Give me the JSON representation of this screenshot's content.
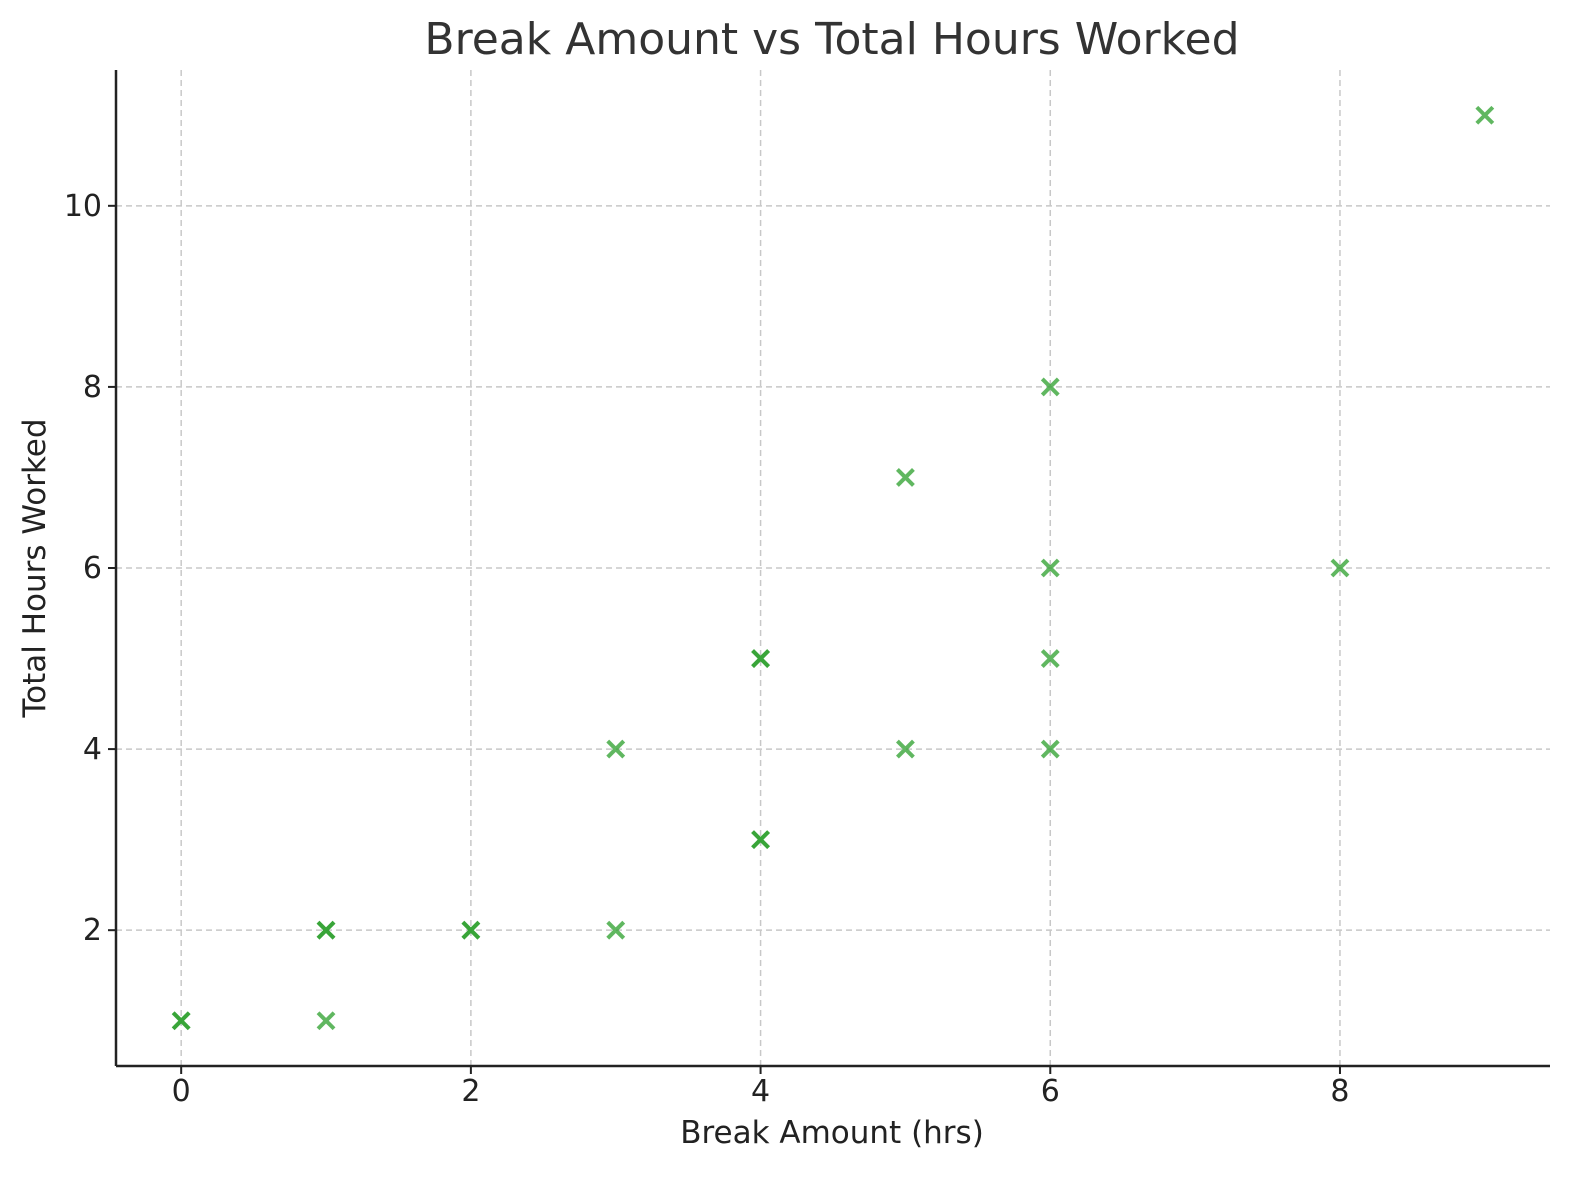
{
  "chart_data": {
    "type": "scatter",
    "title": "Break Amount vs Total Hours Worked",
    "xlabel": "Break Amount (hrs)",
    "ylabel": "Total Hours Worked",
    "xlim": [
      -0.45,
      9.45
    ],
    "ylim": [
      0.5,
      11.5
    ],
    "xticks": [
      0,
      2,
      4,
      6,
      8
    ],
    "yticks": [
      2,
      4,
      6,
      8,
      10
    ],
    "grid": true,
    "marker": "x",
    "color": "#2ca02c",
    "alpha": 0.75,
    "points": [
      {
        "x": 0,
        "y": 1
      },
      {
        "x": 0,
        "y": 1
      },
      {
        "x": 1,
        "y": 1
      },
      {
        "x": 1,
        "y": 2
      },
      {
        "x": 1,
        "y": 2
      },
      {
        "x": 2,
        "y": 2
      },
      {
        "x": 2,
        "y": 2
      },
      {
        "x": 3,
        "y": 2
      },
      {
        "x": 3,
        "y": 4
      },
      {
        "x": 4,
        "y": 3
      },
      {
        "x": 4,
        "y": 3
      },
      {
        "x": 4,
        "y": 5
      },
      {
        "x": 4,
        "y": 5
      },
      {
        "x": 5,
        "y": 4
      },
      {
        "x": 5,
        "y": 7
      },
      {
        "x": 6,
        "y": 4
      },
      {
        "x": 6,
        "y": 5
      },
      {
        "x": 6,
        "y": 6
      },
      {
        "x": 6,
        "y": 8
      },
      {
        "x": 8,
        "y": 6
      },
      {
        "x": 9,
        "y": 11
      }
    ]
  }
}
